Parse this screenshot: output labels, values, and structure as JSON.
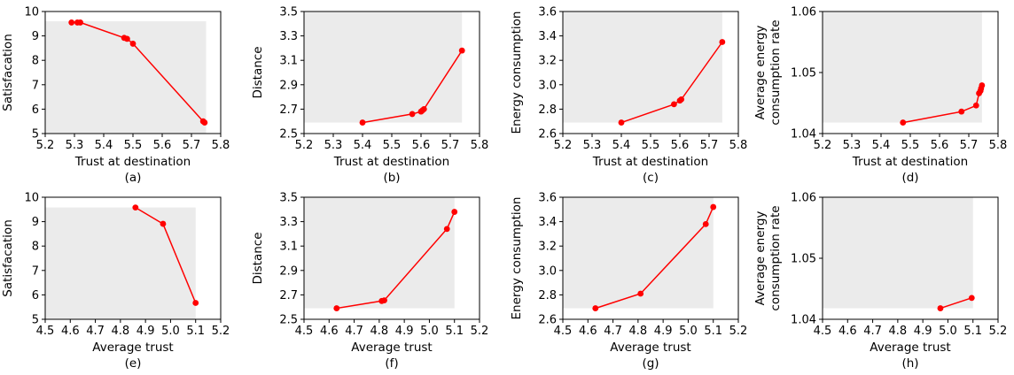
{
  "chart_data": [
    {
      "type": "line",
      "caption": "(a)",
      "xlabel": "Trust at destination",
      "ylabel": [
        "Satisfacation"
      ],
      "xlim": [
        5.2,
        5.8
      ],
      "ylim": [
        5,
        10
      ],
      "xticks": [
        5.2,
        5.3,
        5.4,
        5.5,
        5.6,
        5.7,
        5.8
      ],
      "xtick_labels": [
        "5.2",
        "5.3",
        "5.4",
        "5.5",
        "5.6",
        "5.7",
        "5.8"
      ],
      "yticks": [
        5,
        6,
        7,
        8,
        9,
        10
      ],
      "ytick_labels": [
        "5",
        "6",
        "7",
        "8",
        "9",
        "10"
      ],
      "shade_x": 5.75,
      "shade_y": 9.6,
      "shade_direction": "below",
      "line_color": "#ff0000",
      "shade_color": "#ebebeb",
      "x": [
        5.29,
        5.31,
        5.32,
        5.47,
        5.48,
        5.5,
        5.74,
        5.745
      ],
      "y": [
        9.55,
        9.55,
        9.55,
        8.92,
        8.88,
        8.68,
        5.5,
        5.45
      ]
    },
    {
      "type": "line",
      "caption": "(b)",
      "xlabel": "Trust at destination",
      "ylabel": [
        "Distance"
      ],
      "xlim": [
        5.2,
        5.8
      ],
      "ylim": [
        2.5,
        3.5
      ],
      "xticks": [
        5.2,
        5.3,
        5.4,
        5.5,
        5.6,
        5.7,
        5.8
      ],
      "xtick_labels": [
        "5.2",
        "5.3",
        "5.4",
        "5.5",
        "5.6",
        "5.7",
        "5.8"
      ],
      "yticks": [
        2.5,
        2.7,
        2.9,
        3.1,
        3.3,
        3.5
      ],
      "ytick_labels": [
        "2.5",
        "2.7",
        "2.9",
        "3.1",
        "3.3",
        "3.5"
      ],
      "shade_x": 5.74,
      "shade_y": 2.59,
      "shade_direction": "above",
      "line_color": "#ff0000",
      "shade_color": "#ebebeb",
      "x": [
        5.4,
        5.57,
        5.6,
        5.605,
        5.61,
        5.74
      ],
      "y": [
        2.59,
        2.66,
        2.68,
        2.69,
        2.7,
        3.18
      ]
    },
    {
      "type": "line",
      "caption": "(c)",
      "xlabel": "Trust at destination",
      "ylabel": [
        "Energy consumption"
      ],
      "xlim": [
        5.2,
        5.8
      ],
      "ylim": [
        2.6,
        3.6
      ],
      "xticks": [
        5.2,
        5.3,
        5.4,
        5.5,
        5.6,
        5.7,
        5.8
      ],
      "xtick_labels": [
        "5.2",
        "5.3",
        "5.4",
        "5.5",
        "5.6",
        "5.7",
        "5.8"
      ],
      "yticks": [
        2.6,
        2.8,
        3.0,
        3.2,
        3.4,
        3.6
      ],
      "ytick_labels": [
        "2.6",
        "2.8",
        "3.0",
        "3.2",
        "3.4",
        "3.6"
      ],
      "shade_x": 5.745,
      "shade_y": 2.69,
      "shade_direction": "above",
      "line_color": "#ff0000",
      "shade_color": "#ebebeb",
      "x": [
        5.4,
        5.58,
        5.6,
        5.605,
        5.745
      ],
      "y": [
        2.69,
        2.84,
        2.87,
        2.88,
        3.35
      ]
    },
    {
      "type": "line",
      "caption": "(d)",
      "xlabel": "Trust at destination",
      "ylabel": [
        "Average energy",
        "consumption rate"
      ],
      "xlim": [
        5.2,
        5.8
      ],
      "ylim": [
        1.04,
        1.06
      ],
      "xticks": [
        5.2,
        5.3,
        5.4,
        5.5,
        5.6,
        5.7,
        5.8
      ],
      "xtick_labels": [
        "5.2",
        "5.3",
        "5.4",
        "5.5",
        "5.6",
        "5.7",
        "5.8"
      ],
      "yticks": [
        1.04,
        1.05,
        1.06
      ],
      "ytick_labels": [
        "1.04",
        "1.05",
        "1.06"
      ],
      "shade_x": 5.745,
      "shade_y": 1.0418,
      "shade_direction": "above",
      "line_color": "#ff0000",
      "shade_color": "#ebebeb",
      "x": [
        5.475,
        5.675,
        5.725,
        5.735,
        5.74,
        5.742,
        5.745
      ],
      "y": [
        1.0418,
        1.0436,
        1.0446,
        1.0466,
        1.047,
        1.0474,
        1.0479
      ]
    },
    {
      "type": "line",
      "caption": "(e)",
      "xlabel": "Average trust",
      "ylabel": [
        "Satisfacation"
      ],
      "xlim": [
        4.5,
        5.2
      ],
      "ylim": [
        5,
        10
      ],
      "xticks": [
        4.5,
        4.6,
        4.7,
        4.8,
        4.9,
        5.0,
        5.1,
        5.2
      ],
      "xtick_labels": [
        "4.5",
        "4.6",
        "4.7",
        "4.8",
        "4.9",
        "5.0",
        "5.1",
        "5.2"
      ],
      "yticks": [
        5,
        6,
        7,
        8,
        9,
        10
      ],
      "ytick_labels": [
        "5",
        "6",
        "7",
        "8",
        "9",
        "10"
      ],
      "shade_x": 5.1,
      "shade_y": 9.58,
      "shade_direction": "below",
      "line_color": "#ff0000",
      "shade_color": "#ebebeb",
      "x": [
        4.86,
        4.97,
        5.1
      ],
      "y": [
        9.58,
        8.91,
        5.67
      ]
    },
    {
      "type": "line",
      "caption": "(f)",
      "xlabel": "Average trust",
      "ylabel": [
        "Distance"
      ],
      "xlim": [
        4.5,
        5.2
      ],
      "ylim": [
        2.5,
        3.5
      ],
      "xticks": [
        4.5,
        4.6,
        4.7,
        4.8,
        4.9,
        5.0,
        5.1,
        5.2
      ],
      "xtick_labels": [
        "4.5",
        "4.6",
        "4.7",
        "4.8",
        "4.9",
        "5.0",
        "5.1",
        "5.2"
      ],
      "yticks": [
        2.5,
        2.7,
        2.9,
        3.1,
        3.3,
        3.5
      ],
      "ytick_labels": [
        "2.5",
        "2.7",
        "2.9",
        "3.1",
        "3.3",
        "3.5"
      ],
      "shade_x": 5.1,
      "shade_y": 2.59,
      "shade_direction": "above",
      "line_color": "#ff0000",
      "shade_color": "#ebebeb",
      "x": [
        4.63,
        4.81,
        4.82,
        5.07,
        5.1
      ],
      "y": [
        2.59,
        2.65,
        2.655,
        3.24,
        3.38
      ]
    },
    {
      "type": "line",
      "caption": "(g)",
      "xlabel": "Average trust",
      "ylabel": [
        "Energy consumption"
      ],
      "xlim": [
        4.5,
        5.2
      ],
      "ylim": [
        2.6,
        3.6
      ],
      "xticks": [
        4.5,
        4.6,
        4.7,
        4.8,
        4.9,
        5.0,
        5.1,
        5.2
      ],
      "xtick_labels": [
        "4.5",
        "4.6",
        "4.7",
        "4.8",
        "4.9",
        "5.0",
        "5.1",
        "5.2"
      ],
      "yticks": [
        2.6,
        2.8,
        3.0,
        3.2,
        3.4,
        3.6
      ],
      "ytick_labels": [
        "2.6",
        "2.8",
        "3.0",
        "3.2",
        "3.4",
        "3.6"
      ],
      "shade_x": 5.1,
      "shade_y": 2.69,
      "shade_direction": "above",
      "line_color": "#ff0000",
      "shade_color": "#ebebeb",
      "x": [
        4.63,
        4.81,
        5.07,
        5.1
      ],
      "y": [
        2.69,
        2.81,
        3.38,
        3.52
      ]
    },
    {
      "type": "line",
      "caption": "(h)",
      "xlabel": "Average trust",
      "ylabel": [
        "Average energy",
        "consumption rate"
      ],
      "xlim": [
        4.5,
        5.2
      ],
      "ylim": [
        1.04,
        1.06
      ],
      "xticks": [
        4.5,
        4.6,
        4.7,
        4.8,
        4.9,
        5.0,
        5.1,
        5.2
      ],
      "xtick_labels": [
        "4.5",
        "4.6",
        "4.7",
        "4.8",
        "4.9",
        "5.0",
        "5.1",
        "5.2"
      ],
      "yticks": [
        1.04,
        1.05,
        1.06
      ],
      "ytick_labels": [
        "1.04",
        "1.05",
        "1.06"
      ],
      "shade_x": 5.1,
      "shade_y": 1.0418,
      "shade_direction": "above",
      "line_color": "#ff0000",
      "shade_color": "#ebebeb",
      "x": [
        4.97,
        5.095
      ],
      "y": [
        1.0418,
        1.0435
      ]
    }
  ]
}
